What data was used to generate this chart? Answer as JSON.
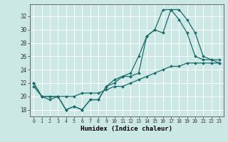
{
  "xlabel": "Humidex (Indice chaleur)",
  "background_color": "#cce8e4",
  "grid_color": "#ffffff",
  "line_color": "#1a6b6b",
  "xlim": [
    -0.5,
    23.5
  ],
  "ylim": [
    17.0,
    33.8
  ],
  "yticks": [
    18,
    20,
    22,
    24,
    26,
    28,
    30,
    32
  ],
  "xticks": [
    0,
    1,
    2,
    3,
    4,
    5,
    6,
    7,
    8,
    9,
    10,
    11,
    12,
    13,
    14,
    15,
    16,
    17,
    18,
    19,
    20,
    21,
    22,
    23
  ],
  "series1": [
    22,
    20,
    20,
    20,
    18,
    18.5,
    18,
    19.5,
    19.5,
    21.5,
    22,
    23,
    23,
    23.5,
    29,
    30,
    29.5,
    33,
    33,
    31.5,
    29.5,
    26,
    25.5,
    25
  ],
  "series2": [
    22,
    20,
    20,
    20,
    18,
    18.5,
    18,
    19.5,
    19.5,
    21.5,
    22.5,
    23,
    23.5,
    26,
    29,
    30,
    33,
    33,
    31.5,
    29.5,
    26,
    25.5,
    25.5,
    25.5
  ],
  "series3": [
    21.5,
    20,
    19.5,
    20,
    20,
    20,
    20.5,
    20.5,
    20.5,
    21,
    21.5,
    21.5,
    22,
    22.5,
    23,
    23.5,
    24,
    24.5,
    24.5,
    25,
    25,
    25,
    25,
    25
  ]
}
